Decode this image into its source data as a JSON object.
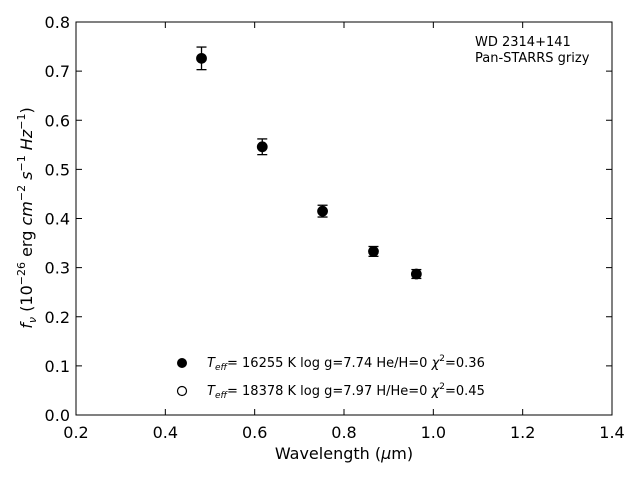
{
  "chart_data": {
    "type": "scatter",
    "xlabel_text": "Wavelength (",
    "xlabel_mu": "μ",
    "xlabel_unit": "m)",
    "ylabel": {
      "f": "f",
      "nu": "ν",
      "open": " (10",
      "exp26": "−26",
      "erg": " erg ",
      "cm": "cm",
      "exp2": "−2",
      "s": " s",
      "exp1": "−1",
      "hz": " Hz",
      "exp1b": "−1",
      "close": ")"
    },
    "xlim": [
      0.2,
      1.4
    ],
    "ylim": [
      0.0,
      0.8
    ],
    "xticks": [
      "0.2",
      "0.4",
      "0.6",
      "0.8",
      "1.0",
      "1.2",
      "1.4"
    ],
    "yticks": [
      "0.0",
      "0.1",
      "0.2",
      "0.3",
      "0.4",
      "0.5",
      "0.6",
      "0.7",
      "0.8"
    ],
    "annotation": [
      "WD 2314+141",
      "Pan-STARRS grizy"
    ],
    "grid": false,
    "legend_position": "bottom-center",
    "series": [
      {
        "marker": "filled",
        "color": "#000000",
        "x": [
          0.481,
          0.617,
          0.752,
          0.866,
          0.962
        ],
        "y": [
          0.726,
          0.546,
          0.415,
          0.333,
          0.287
        ],
        "yerr": [
          0.023,
          0.016,
          0.012,
          0.01,
          0.009
        ],
        "legend": {
          "T": "T",
          "eff": "eff",
          "params": "= 16255 K  log g=7.74  He/H=0  ",
          "chi": "χ",
          "two": "2",
          "chival": "=0.36"
        }
      },
      {
        "marker": "open",
        "color": "#000000",
        "x": [],
        "y": [],
        "legend": {
          "T": "T",
          "eff": "eff",
          "params": "= 18378 K  log g=7.97  H/He=0  ",
          "chi": "χ",
          "two": "2",
          "chival": "=0.45"
        }
      }
    ]
  }
}
